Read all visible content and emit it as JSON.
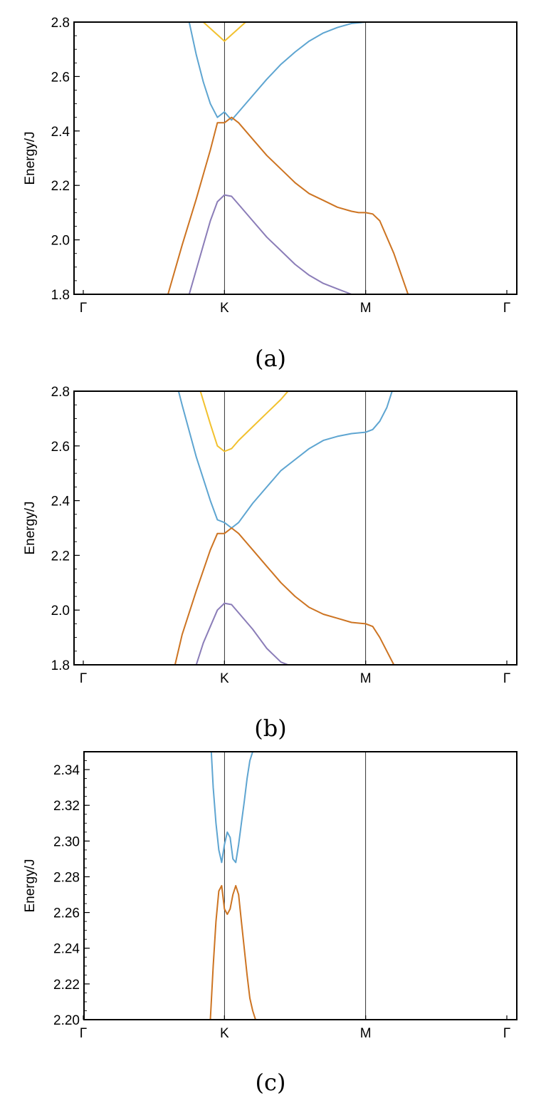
{
  "chart_data": [
    {
      "type": "line",
      "caption": "(a)",
      "ylabel": "Energy/J",
      "ylim": [
        1.8,
        2.8
      ],
      "yticks": [
        "1.8",
        "2.0",
        "2.2",
        "2.4",
        "2.6",
        "2.8"
      ],
      "xticks": [
        "Γ",
        "K",
        "M",
        "Γ"
      ],
      "series": [
        {
          "color": "#f2c12e",
          "x": [
            0.75,
            0.85,
            1.0,
            1.15,
            1.25
          ],
          "y": [
            2.9,
            2.8,
            2.73,
            2.8,
            2.9
          ]
        },
        {
          "color": "#5ea5d1",
          "x": [
            0.7,
            0.75,
            0.8,
            0.85,
            0.9,
            0.95,
            1.0,
            1.05,
            1.1,
            1.2,
            1.3,
            1.4,
            1.5,
            1.6,
            1.7,
            1.8,
            1.9,
            2.0
          ],
          "y": [
            2.93,
            2.8,
            2.68,
            2.58,
            2.5,
            2.45,
            2.47,
            2.44,
            2.47,
            2.53,
            2.59,
            2.645,
            2.69,
            2.73,
            2.76,
            2.78,
            2.795,
            2.8
          ]
        },
        {
          "color": "#cd7422",
          "x": [
            0.6,
            0.7,
            0.8,
            0.9,
            0.95,
            1.0,
            1.05,
            1.1,
            1.2,
            1.3,
            1.4,
            1.5,
            1.6,
            1.7,
            1.8,
            1.9,
            1.95,
            2.0,
            2.05,
            2.1,
            2.2,
            2.3
          ],
          "y": [
            1.8,
            1.98,
            2.15,
            2.33,
            2.43,
            2.43,
            2.45,
            2.43,
            2.37,
            2.31,
            2.26,
            2.21,
            2.17,
            2.145,
            2.12,
            2.105,
            2.1,
            2.1,
            2.095,
            2.07,
            1.95,
            1.8
          ]
        },
        {
          "color": "#8b7db8",
          "x": [
            0.75,
            0.8,
            0.85,
            0.9,
            0.95,
            1.0,
            1.05,
            1.1,
            1.2,
            1.3,
            1.4,
            1.5,
            1.6,
            1.7,
            1.8,
            1.9
          ],
          "y": [
            1.8,
            1.89,
            1.98,
            2.07,
            2.14,
            2.165,
            2.16,
            2.13,
            2.07,
            2.01,
            1.96,
            1.91,
            1.87,
            1.84,
            1.82,
            1.8
          ]
        }
      ]
    },
    {
      "type": "line",
      "caption": "(b)",
      "ylabel": "Energy/J",
      "ylim": [
        1.8,
        2.8
      ],
      "yticks": [
        "1.8",
        "2.0",
        "2.2",
        "2.4",
        "2.6",
        "2.8"
      ],
      "xticks": [
        "Γ",
        "K",
        "M",
        "Γ"
      ],
      "series": [
        {
          "color": "#f2c12e",
          "x": [
            0.8,
            0.9,
            0.95,
            1.0,
            1.05,
            1.1,
            1.2,
            1.3,
            1.4,
            1.45
          ],
          "y": [
            2.85,
            2.68,
            2.6,
            2.58,
            2.59,
            2.62,
            2.67,
            2.72,
            2.77,
            2.8
          ]
        },
        {
          "color": "#5ea5d1",
          "x": [
            0.65,
            0.7,
            0.8,
            0.9,
            0.95,
            1.0,
            1.05,
            1.1,
            1.2,
            1.3,
            1.4,
            1.5,
            1.6,
            1.7,
            1.8,
            1.9,
            2.0,
            2.05,
            2.1,
            2.15,
            2.2
          ],
          "y": [
            2.85,
            2.75,
            2.56,
            2.4,
            2.33,
            2.32,
            2.3,
            2.32,
            2.39,
            2.45,
            2.51,
            2.55,
            2.59,
            2.62,
            2.635,
            2.645,
            2.65,
            2.66,
            2.69,
            2.74,
            2.82
          ]
        },
        {
          "color": "#cd7422",
          "x": [
            0.65,
            0.7,
            0.8,
            0.9,
            0.95,
            1.0,
            1.05,
            1.1,
            1.2,
            1.3,
            1.4,
            1.5,
            1.6,
            1.7,
            1.8,
            1.9,
            2.0,
            2.05,
            2.1,
            2.2
          ],
          "y": [
            1.8,
            1.91,
            2.07,
            2.22,
            2.28,
            2.28,
            2.3,
            2.28,
            2.22,
            2.16,
            2.1,
            2.05,
            2.01,
            1.985,
            1.97,
            1.955,
            1.95,
            1.94,
            1.9,
            1.8
          ]
        },
        {
          "color": "#8b7db8",
          "x": [
            0.8,
            0.85,
            0.9,
            0.95,
            1.0,
            1.05,
            1.1,
            1.2,
            1.3,
            1.4,
            1.45
          ],
          "y": [
            1.8,
            1.88,
            1.94,
            2.0,
            2.025,
            2.02,
            1.99,
            1.93,
            1.86,
            1.81,
            1.8
          ]
        }
      ]
    },
    {
      "type": "line",
      "caption": "(c)",
      "ylabel": "Energy/J",
      "ylim": [
        2.2,
        2.35
      ],
      "yticks": [
        "2.20",
        "2.22",
        "2.24",
        "2.26",
        "2.28",
        "2.30",
        "2.32",
        "2.34"
      ],
      "xticks": [
        "Γ",
        "K",
        "M",
        "Γ"
      ],
      "series": [
        {
          "color": "#5ea5d1",
          "x": [
            0.9,
            0.92,
            0.94,
            0.96,
            0.98,
            1.0,
            1.02,
            1.04,
            1.06,
            1.08,
            1.1,
            1.12,
            1.14,
            1.16,
            1.18,
            1.2,
            1.22
          ],
          "y": [
            2.36,
            2.33,
            2.31,
            2.295,
            2.288,
            2.298,
            2.305,
            2.302,
            2.29,
            2.288,
            2.298,
            2.31,
            2.322,
            2.335,
            2.345,
            2.35,
            2.355
          ]
        },
        {
          "color": "#cd7422",
          "x": [
            0.9,
            0.92,
            0.94,
            0.96,
            0.98,
            1.0,
            1.02,
            1.04,
            1.06,
            1.08,
            1.1,
            1.12,
            1.14,
            1.16,
            1.18,
            1.2,
            1.22,
            1.24
          ],
          "y": [
            2.2,
            2.23,
            2.255,
            2.272,
            2.275,
            2.262,
            2.259,
            2.262,
            2.27,
            2.275,
            2.27,
            2.255,
            2.24,
            2.225,
            2.212,
            2.205,
            2.2,
            2.19
          ]
        }
      ]
    }
  ]
}
